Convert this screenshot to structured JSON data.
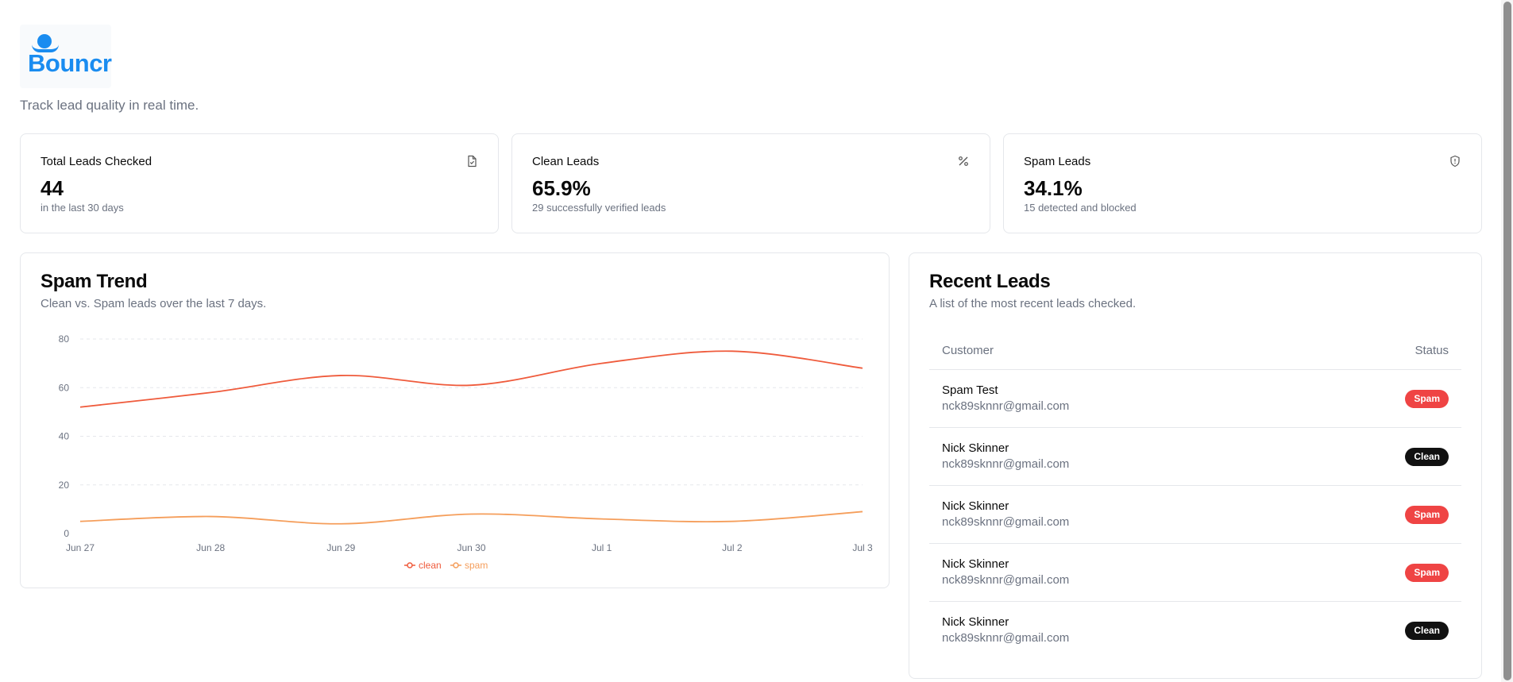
{
  "brand": {
    "name": "Bouncr",
    "color": "#1a8cf0"
  },
  "tagline": "Track lead quality in real time.",
  "stats": [
    {
      "title": "Total Leads Checked",
      "value": "44",
      "sub": "in the last 30 days",
      "icon": "file-check-icon"
    },
    {
      "title": "Clean Leads",
      "value": "65.9%",
      "sub": "29 successfully verified leads",
      "icon": "percent-icon"
    },
    {
      "title": "Spam Leads",
      "value": "34.1%",
      "sub": "15 detected and blocked",
      "icon": "shield-icon"
    }
  ],
  "trend": {
    "title": "Spam Trend",
    "subtitle": "Clean vs. Spam leads over the last 7 days."
  },
  "chart_data": {
    "type": "line",
    "x": [
      "Jun 27",
      "Jun 28",
      "Jun 29",
      "Jun 30",
      "Jul 1",
      "Jul 2",
      "Jul 3"
    ],
    "series": [
      {
        "name": "clean",
        "values": [
          52,
          58,
          65,
          61,
          70,
          75,
          68
        ],
        "color": "#ef5b3c"
      },
      {
        "name": "spam",
        "values": [
          5,
          7,
          4,
          8,
          6,
          5,
          9
        ],
        "color": "#f59e5b"
      }
    ],
    "yticks": [
      0,
      20,
      40,
      60,
      80
    ],
    "ylim": [
      0,
      80
    ],
    "grid": true,
    "legend": "bottom"
  },
  "leads": {
    "title": "Recent Leads",
    "subtitle": "A list of the most recent leads checked.",
    "columns": [
      "Customer",
      "Status"
    ],
    "rows": [
      {
        "name": "Spam Test",
        "email": "nck89sknnr@gmail.com",
        "status": "Spam"
      },
      {
        "name": "Nick Skinner",
        "email": "nck89sknnr@gmail.com",
        "status": "Clean"
      },
      {
        "name": "Nick Skinner",
        "email": "nck89sknnr@gmail.com",
        "status": "Spam"
      },
      {
        "name": "Nick Skinner",
        "email": "nck89sknnr@gmail.com",
        "status": "Spam"
      },
      {
        "name": "Nick Skinner",
        "email": "nck89sknnr@gmail.com",
        "status": "Clean"
      }
    ]
  }
}
